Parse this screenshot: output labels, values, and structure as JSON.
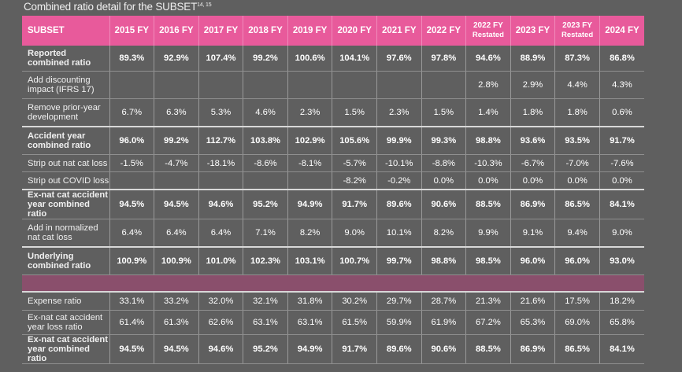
{
  "caption": "Combined ratio detail for the SUBSET",
  "caption_sup": "14, 15",
  "header": {
    "first": "SUBSET",
    "cols": [
      {
        "main": "2015 FY",
        "sub": ""
      },
      {
        "main": "2016 FY",
        "sub": ""
      },
      {
        "main": "2017 FY",
        "sub": ""
      },
      {
        "main": "2018 FY",
        "sub": ""
      },
      {
        "main": "2019 FY",
        "sub": ""
      },
      {
        "main": "2020 FY",
        "sub": ""
      },
      {
        "main": "2021 FY",
        "sub": ""
      },
      {
        "main": "2022 FY",
        "sub": ""
      },
      {
        "main": "2022 FY",
        "sub": "Restated"
      },
      {
        "main": "2023 FY",
        "sub": ""
      },
      {
        "main": "2023 FY",
        "sub": "Restated"
      },
      {
        "main": "2024 FY",
        "sub": ""
      }
    ]
  },
  "rows": [
    {
      "label": "Reported combined ratio",
      "bold": true,
      "values": [
        "89.3%",
        "92.9%",
        "107.4%",
        "99.2%",
        "100.6%",
        "104.1%",
        "97.6%",
        "97.8%",
        "94.6%",
        "88.9%",
        "87.3%",
        "86.8%"
      ]
    },
    {
      "label": "Add discounting impact (IFRS 17)",
      "bold": false,
      "values": [
        "",
        "",
        "",
        "",
        "",
        "",
        "",
        "",
        "2.8%",
        "2.9%",
        "4.4%",
        "4.3%"
      ]
    },
    {
      "label": "Remove prior-year development",
      "bold": false,
      "values": [
        "6.7%",
        "6.3%",
        "5.3%",
        "4.6%",
        "2.3%",
        "1.5%",
        "2.3%",
        "1.5%",
        "1.4%",
        "1.8%",
        "1.8%",
        "0.6%"
      ]
    },
    {
      "label": "Accident year combined ratio",
      "bold": true,
      "values": [
        "96.0%",
        "99.2%",
        "112.7%",
        "103.8%",
        "102.9%",
        "105.6%",
        "99.9%",
        "99.3%",
        "98.8%",
        "93.6%",
        "93.5%",
        "91.7%"
      ]
    },
    {
      "label": "Strip out nat cat loss",
      "bold": false,
      "values": [
        "-1.5%",
        "-4.7%",
        "-18.1%",
        "-8.6%",
        "-8.1%",
        "-5.7%",
        "-10.1%",
        "-8.8%",
        "-10.3%",
        "-6.7%",
        "-7.0%",
        "-7.6%"
      ]
    },
    {
      "label": "Strip out COVID loss",
      "bold": false,
      "values": [
        "",
        "",
        "",
        "",
        "",
        "-8.2%",
        "-0.2%",
        "0.0%",
        "0.0%",
        "0.0%",
        "0.0%",
        "0.0%"
      ]
    },
    {
      "label": "Ex-nat cat accident year combined ratio",
      "bold": true,
      "values": [
        "94.5%",
        "94.5%",
        "94.6%",
        "95.2%",
        "94.9%",
        "91.7%",
        "89.6%",
        "90.6%",
        "88.5%",
        "86.9%",
        "86.5%",
        "84.1%"
      ]
    },
    {
      "label": "Add in normalized nat cat loss",
      "bold": false,
      "values": [
        "6.4%",
        "6.4%",
        "6.4%",
        "7.1%",
        "8.2%",
        "9.0%",
        "10.1%",
        "8.2%",
        "9.9%",
        "9.1%",
        "9.4%",
        "9.0%"
      ]
    },
    {
      "label": "Underlying combined ratio",
      "bold": true,
      "values": [
        "100.9%",
        "100.9%",
        "101.0%",
        "102.3%",
        "103.1%",
        "100.7%",
        "99.7%",
        "98.8%",
        "98.5%",
        "96.0%",
        "96.0%",
        "93.0%"
      ]
    },
    {
      "label": "Expense ratio",
      "bold": false,
      "values": [
        "33.1%",
        "33.2%",
        "32.0%",
        "32.1%",
        "31.8%",
        "30.2%",
        "29.7%",
        "28.7%",
        "21.3%",
        "21.6%",
        "17.5%",
        "18.2%"
      ]
    },
    {
      "label": "Ex-nat cat accident year loss ratio",
      "bold": false,
      "values": [
        "61.4%",
        "61.3%",
        "62.6%",
        "63.1%",
        "63.1%",
        "61.5%",
        "59.9%",
        "61.9%",
        "67.2%",
        "65.3%",
        "69.0%",
        "65.8%"
      ]
    },
    {
      "label": "Ex-nat cat accident year combined ratio",
      "bold": true,
      "values": [
        "94.5%",
        "94.5%",
        "94.6%",
        "95.2%",
        "94.9%",
        "91.7%",
        "89.6%",
        "90.6%",
        "88.5%",
        "86.9%",
        "86.5%",
        "84.1%"
      ]
    }
  ],
  "colors": {
    "header": "#e85a9b",
    "spacer": "#8a4f6c",
    "background": "#5f5f5f"
  }
}
